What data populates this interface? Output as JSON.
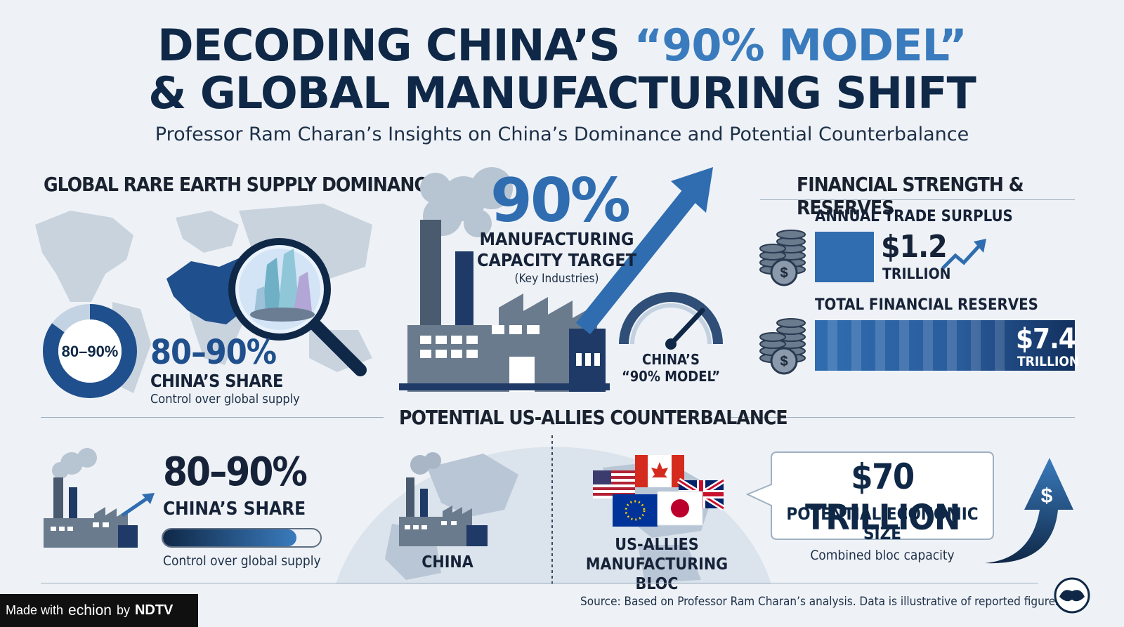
{
  "title": {
    "line1_prefix": "DECODING CHINA’S ",
    "line1_highlight": "“90% MODEL”",
    "line2": "& GLOBAL MANUFACTURING SHIFT",
    "subtitle": "Professor Ram Charan’s Insights on China’s Dominance and Potential Counterbalance"
  },
  "rare_earth": {
    "heading": "GLOBAL RARE EARTH SUPPLY DOMINANCE",
    "donut_label": "80–90%",
    "donut_fill": 0.85,
    "big_value": "80–90%",
    "share_label": "CHINA’S SHARE",
    "caption": "Control over global supply"
  },
  "manufacturing": {
    "big_value": "90%",
    "label_line1": "MANUFACTURING",
    "label_line2": "CAPACITY TARGET",
    "note": "(Key Industries)",
    "gauge_line1": "CHINA’S",
    "gauge_line2": "“90% MODEL”"
  },
  "financial": {
    "heading": "FINANCIAL STRENGTH & RESERVES",
    "surplus_label": "ANNUAL TRADE SURPLUS",
    "surplus_value": "$1.2",
    "surplus_unit": "TRILLION",
    "reserves_label": "TOTAL FINANCIAL RESERVES",
    "reserves_value": "$7.4",
    "reserves_unit": "TRILLION"
  },
  "counterbalance": {
    "heading": "POTENTIAL US-ALLIES COUNTERBALANCE",
    "big_value": "80–90%",
    "share_label": "CHINA’S SHARE",
    "bar_fill": 0.85,
    "caption": "Control over global supply",
    "china_label": "CHINA",
    "bloc_line1": "US-ALLIES",
    "bloc_line2": "MANUFACTURING BLOC",
    "econ_value": "$70 TRILLION",
    "econ_label": "POTENTIAL ECONOMIC SIZE",
    "econ_caption": "Combined bloc capacity"
  },
  "footer": {
    "made_with": "Made with",
    "brand": "echion",
    "by": "by",
    "partner": "NDTV",
    "source": "Source: Based on Professor Ram Charan’s analysis. Data is illustrative of reported figures."
  },
  "colors": {
    "navy": "#0f2847",
    "accent": "#3a7bbd",
    "mid_blue": "#2f6db0",
    "slate": "#5f6f82"
  },
  "icons": [
    "world-map-icon",
    "magnifier-crystal-icon",
    "factory-icon",
    "trend-arrow-icon",
    "gauge-icon",
    "coin-stack-icon",
    "globe-icon",
    "flags-icon",
    "dollar-arrow-icon",
    "echion-logo-icon"
  ]
}
